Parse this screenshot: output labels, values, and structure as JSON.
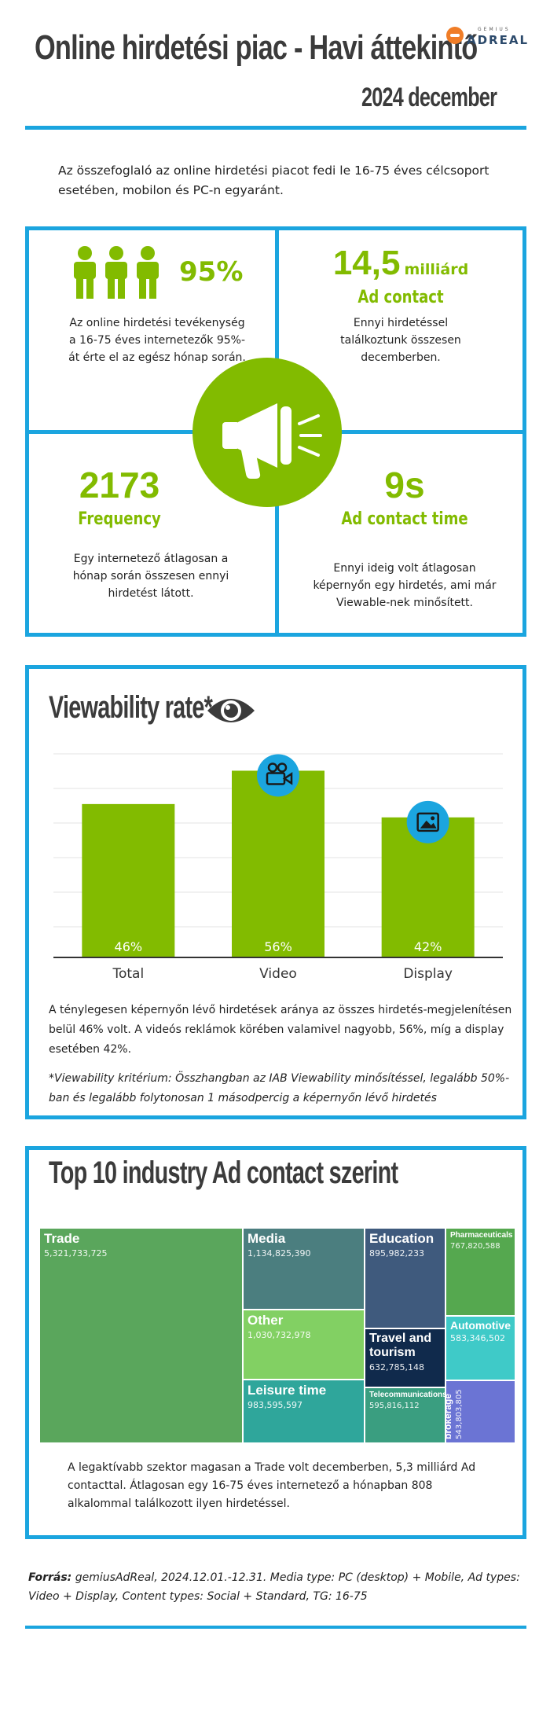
{
  "header": {
    "title": "Online hirdetési piac  - Havi áttekintő",
    "period": "2024 december",
    "logo_small": "GEMIUS",
    "logo_big": "ADREAL"
  },
  "intro": "Az összefoglaló az online hirdetési piacot fedi le 16-75 éves célcsoport esetében, mobilon és PC-n egyaránt.",
  "kpis": {
    "reach": {
      "value": "95%",
      "text": "Az online hirdetési tevékenység a 16-75 éves internetezők 95%-át érte el az egész hónap során."
    },
    "ad_contact": {
      "value": "14,5",
      "unit": "milliárd",
      "label": "Ad contact",
      "text": "Ennyi hirdetéssel találkoztunk összesen decemberben."
    },
    "frequency": {
      "value": "2173",
      "label": "Frequency",
      "text": "Egy internetező átlagosan a hónap során összesen ennyi hirdetést látott."
    },
    "ad_contact_time": {
      "value": "9s",
      "label": "Ad contact time",
      "text": "Ennyi ideig volt átlagosan képernyőn egy hirdetés, ami már Viewable-nek minősített."
    }
  },
  "viewability": {
    "title": "Viewability rate*",
    "description": "A ténylegesen képernyőn lévő hirdetések aránya az összes hirdetés-megjelenítésen belül 46% volt. A videós reklámok körében valamivel nagyobb, 56%, míg a display esetében 42%.",
    "note": "*Viewability kritérium: Összhangban az IAB Viewability minősítéssel, legalább 50%-ban és legalább folytonosan 1 másodpercig a képernyőn lévő hirdetés"
  },
  "chart_data": {
    "type": "bar",
    "categories": [
      "Total",
      "Video",
      "Display"
    ],
    "values": [
      46,
      56,
      42
    ],
    "value_labels": [
      "46%",
      "56%",
      "42%"
    ],
    "ylim": [
      0,
      62
    ],
    "grid": true,
    "colors": {
      "bar": "#82bb00",
      "icon_circle": "#1ba5df"
    }
  },
  "industries": {
    "title": "Top 10 industry Ad contact szerint",
    "items": [
      {
        "name": "Trade",
        "value": "5,321,733,725",
        "color": "#5aa65c"
      },
      {
        "name": "Media",
        "value": "1,134,825,390",
        "color": "#4b7e7f"
      },
      {
        "name": "Education",
        "value": "895,982,233",
        "color": "#3f5a7d"
      },
      {
        "name": "Pharmaceuticals",
        "value": "767,820,588",
        "color": "#55a84f"
      },
      {
        "name": "Other",
        "value": "1,030,732,978",
        "color": "#82d063"
      },
      {
        "name": "Travel and tourism",
        "value": "632,785,148",
        "color": "#102a4c"
      },
      {
        "name": "Automotive",
        "value": "583,346,502",
        "color": "#3fcac8"
      },
      {
        "name": "Leisure time",
        "value": "983,595,597",
        "color": "#2fa69b"
      },
      {
        "name": "Telecommunications",
        "value": "595,816,112",
        "color": "#3a9e80"
      },
      {
        "name": "Finance, insurance, brokerage",
        "value": "543,803,805",
        "color": "#6b74d4"
      }
    ],
    "description": "A legaktívabb szektor magasan a Trade volt decemberben, 5,3 milliárd Ad contacttal. Átlagosan egy 16-75 éves internetező a hónapban 808 alkalommal találkozott ilyen hirdetéssel."
  },
  "source": {
    "label": "Forrás:",
    "text": "gemiusAdReal, 2024.12.01.-12.31. Media type: PC (desktop) + Mobile, Ad types: Video + Display, Content types: Social + Standard, TG: 16-75"
  }
}
